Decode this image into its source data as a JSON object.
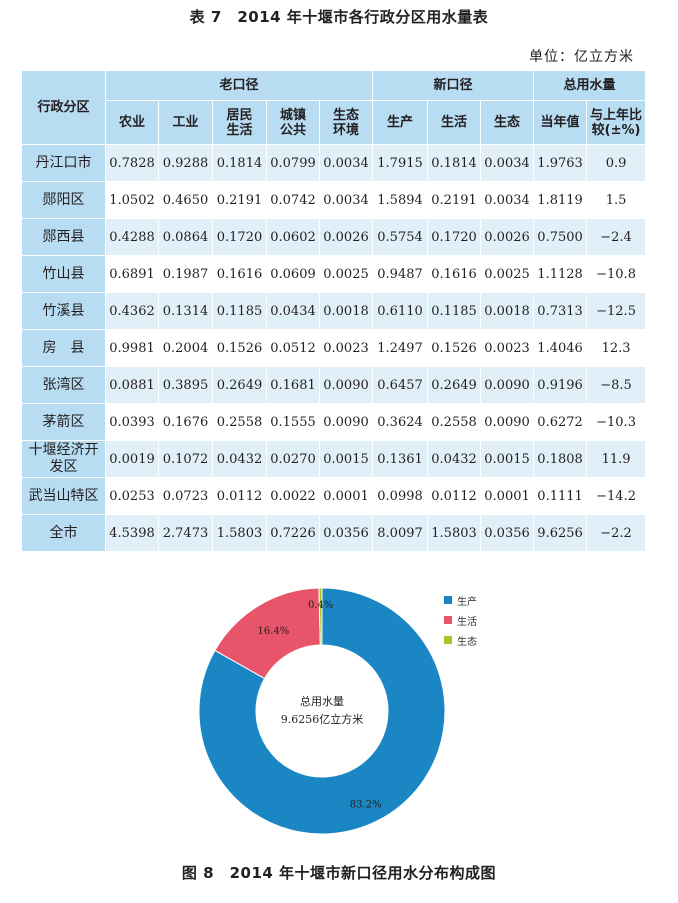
{
  "table_title": "表 7　2014 年十堰市各行政分区用水量表",
  "unit": "单位：亿立方米",
  "headers": {
    "region": "行政分区",
    "old": "老口径",
    "new": "新口径",
    "total": "总用水量",
    "old_cols": [
      "农业",
      "工业",
      "居民\n生活",
      "城镇\n公共",
      "生态\n环境"
    ],
    "new_cols": [
      "生产",
      "生活",
      "生态"
    ],
    "total_cols": [
      "当年值",
      "与上年比\n较(±%)"
    ]
  },
  "rows": [
    {
      "name": "丹江口市",
      "values": [
        "0.7828",
        "0.9288",
        "0.1814",
        "0.0799",
        "0.0034",
        "1.7915",
        "0.1814",
        "0.0034",
        "1.9763",
        "0.9"
      ]
    },
    {
      "name": "郧阳区",
      "values": [
        "1.0502",
        "0.4650",
        "0.2191",
        "0.0742",
        "0.0034",
        "1.5894",
        "0.2191",
        "0.0034",
        "1.8119",
        "1.5"
      ]
    },
    {
      "name": "郧西县",
      "values": [
        "0.4288",
        "0.0864",
        "0.1720",
        "0.0602",
        "0.0026",
        "0.5754",
        "0.1720",
        "0.0026",
        "0.7500",
        "−2.4"
      ]
    },
    {
      "name": "竹山县",
      "values": [
        "0.6891",
        "0.1987",
        "0.1616",
        "0.0609",
        "0.0025",
        "0.9487",
        "0.1616",
        "0.0025",
        "1.1128",
        "−10.8"
      ]
    },
    {
      "name": "竹溪县",
      "values": [
        "0.4362",
        "0.1314",
        "0.1185",
        "0.0434",
        "0.0018",
        "0.6110",
        "0.1185",
        "0.0018",
        "0.7313",
        "−12.5"
      ]
    },
    {
      "name": "房　县",
      "values": [
        "0.9981",
        "0.2004",
        "0.1526",
        "0.0512",
        "0.0023",
        "1.2497",
        "0.1526",
        "0.0023",
        "1.4046",
        "12.3"
      ]
    },
    {
      "name": "张湾区",
      "values": [
        "0.0881",
        "0.3895",
        "0.2649",
        "0.1681",
        "0.0090",
        "0.6457",
        "0.2649",
        "0.0090",
        "0.9196",
        "−8.5"
      ]
    },
    {
      "name": "茅箭区",
      "values": [
        "0.0393",
        "0.1676",
        "0.2558",
        "0.1555",
        "0.0090",
        "0.3624",
        "0.2558",
        "0.0090",
        "0.6272",
        "−10.3"
      ]
    },
    {
      "name": "十堰经济开\n发区",
      "values": [
        "0.0019",
        "0.1072",
        "0.0432",
        "0.0270",
        "0.0015",
        "0.1361",
        "0.0432",
        "0.0015",
        "0.1808",
        "11.9"
      ]
    },
    {
      "name": "武当山特区",
      "values": [
        "0.0253",
        "0.0723",
        "0.0112",
        "0.0022",
        "0.0001",
        "0.0998",
        "0.0112",
        "0.0001",
        "0.1111",
        "−14.2"
      ]
    },
    {
      "name": "全市",
      "values": [
        "4.5398",
        "2.7473",
        "1.5803",
        "0.7226",
        "0.0356",
        "8.0097",
        "1.5803",
        "0.0356",
        "9.6256",
        "−2.2"
      ]
    }
  ],
  "chart_data": {
    "type": "pie",
    "variant": "donut",
    "labels": [
      "生产",
      "生活",
      "生态"
    ],
    "values": [
      83.2,
      16.4,
      0.4
    ],
    "value_labels": [
      "83.2%",
      "16.4%",
      "0.4%"
    ],
    "colors": [
      "#1a86c4",
      "#e8546a",
      "#a4c81f"
    ],
    "center_text": [
      "总用水量",
      "9.6256亿立方米"
    ],
    "legend_position": "top-right"
  },
  "figure_caption": "图 8　2014 年十堰市新口径用水分布构成图"
}
